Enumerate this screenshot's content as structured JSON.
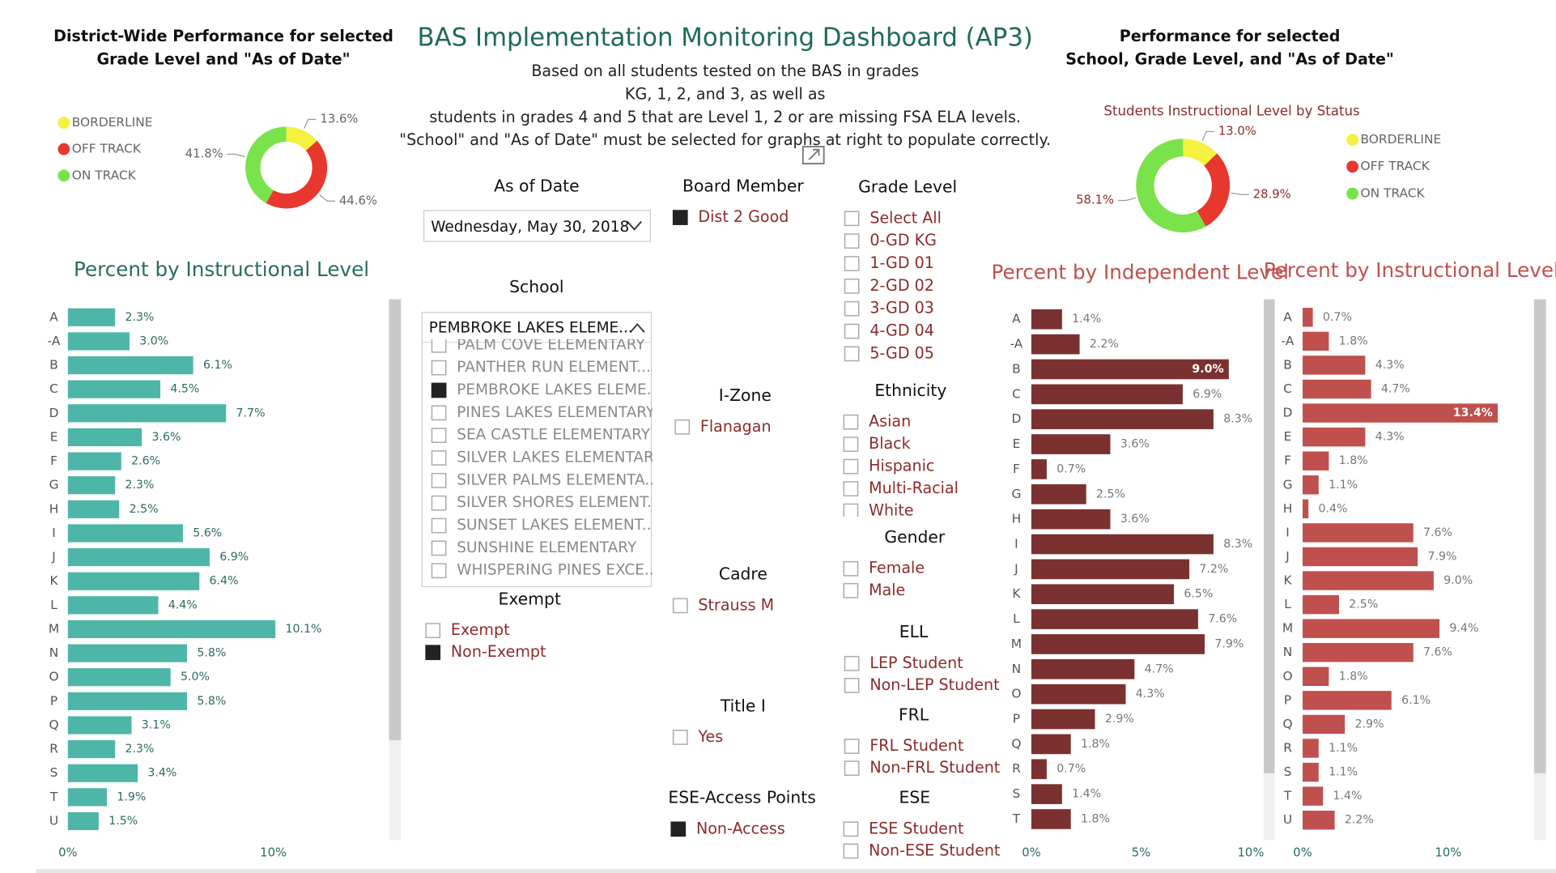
{
  "header": {
    "title": "BAS Implementation Monitoring Dashboard (AP3)",
    "description": [
      "Based on all students tested on the BAS in grades",
      "KG, 1, 2, and 3, as well as",
      "students in grades 4 and 5 that are Level 1, 2 or are missing FSA ELA levels.",
      "\"School\" and \"As of Date\" must be selected for graphs at right to populate correctly."
    ]
  },
  "chart_data": [
    {
      "type": "donut",
      "title": [
        "District-Wide Performance for selected",
        "Grade Level and \"As of Date\""
      ],
      "categories": [
        "BORDERLINE",
        "OFF TRACK",
        "ON TRACK"
      ],
      "values": [
        13.6,
        44.6,
        41.8
      ],
      "value_labels": [
        "13.6%",
        "44.6%",
        "41.8%"
      ],
      "colors": [
        "#f4f23e",
        "#e8382d",
        "#7ae24a"
      ]
    },
    {
      "type": "donut",
      "title": [
        "Performance for selected",
        "School, Grade Level, and \"As of Date\""
      ],
      "subtitle": "Students Instructional Level by Status",
      "categories": [
        "BORDERLINE",
        "OFF TRACK",
        "ON TRACK"
      ],
      "values": [
        13.0,
        28.9,
        58.1
      ],
      "value_labels": [
        "13.0%",
        "28.9%",
        "58.1%"
      ],
      "colors": [
        "#f4f23e",
        "#e8382d",
        "#7ae24a"
      ]
    },
    {
      "type": "bar",
      "orientation": "horizontal",
      "title": "Percent by Instructional Level",
      "categories": [
        "A",
        "-A",
        "B",
        "C",
        "D",
        "E",
        "F",
        "G",
        "H",
        "I",
        "J",
        "K",
        "L",
        "M",
        "N",
        "O",
        "P",
        "Q",
        "R",
        "S",
        "T",
        "U"
      ],
      "values": [
        2.3,
        3.0,
        6.1,
        4.5,
        7.7,
        3.6,
        2.6,
        2.3,
        2.5,
        5.6,
        6.9,
        6.4,
        4.4,
        10.1,
        5.8,
        5.0,
        5.8,
        3.1,
        2.3,
        3.4,
        1.9,
        1.5
      ],
      "value_labels": [
        "2.3%",
        "3.0%",
        "6.1%",
        "4.5%",
        "7.7%",
        "3.6%",
        "2.6%",
        "2.3%",
        "2.5%",
        "5.6%",
        "6.9%",
        "6.4%",
        "4.4%",
        "10.1%",
        "5.8%",
        "5.0%",
        "5.8%",
        "3.1%",
        "2.3%",
        "3.4%",
        "1.9%",
        "1.5%"
      ],
      "color": "#4db6a8",
      "xlim": [
        0,
        15
      ],
      "xticks": [
        {
          "value": 0,
          "label": "0%"
        },
        {
          "value": 10,
          "label": "10%"
        }
      ]
    },
    {
      "type": "bar",
      "orientation": "horizontal",
      "title": "Percent by Independent Level",
      "categories": [
        "A",
        "-A",
        "B",
        "C",
        "D",
        "E",
        "F",
        "G",
        "H",
        "I",
        "J",
        "K",
        "L",
        "M",
        "N",
        "O",
        "P",
        "Q",
        "R",
        "S",
        "T"
      ],
      "values": [
        1.4,
        2.2,
        9.0,
        6.9,
        8.3,
        3.6,
        0.7,
        2.5,
        3.6,
        8.3,
        7.2,
        6.5,
        7.6,
        7.9,
        4.7,
        4.3,
        2.9,
        1.8,
        0.7,
        1.4,
        1.8
      ],
      "value_labels": [
        "1.4%",
        "2.2%",
        "9.0%",
        "6.9%",
        "8.3%",
        "3.6%",
        "0.7%",
        "2.5%",
        "3.6%",
        "8.3%",
        "7.2%",
        "6.5%",
        "7.6%",
        "7.9%",
        "4.7%",
        "4.3%",
        "2.9%",
        "1.8%",
        "0.7%",
        "1.4%",
        "1.8%"
      ],
      "color": "#7b3130",
      "xlim": [
        0,
        10
      ],
      "xticks": [
        {
          "value": 0,
          "label": "0%"
        },
        {
          "value": 5,
          "label": "5%"
        },
        {
          "value": 10,
          "label": "10%"
        }
      ]
    },
    {
      "type": "bar",
      "orientation": "horizontal",
      "title": "Percent by Instructional Level",
      "categories": [
        "A",
        "-A",
        "B",
        "C",
        "D",
        "E",
        "F",
        "G",
        "H",
        "I",
        "J",
        "K",
        "L",
        "M",
        "N",
        "O",
        "P",
        "Q",
        "R",
        "S",
        "T",
        "U"
      ],
      "values": [
        0.7,
        1.8,
        4.3,
        4.7,
        13.4,
        4.3,
        1.8,
        1.1,
        0.4,
        7.6,
        7.9,
        9.0,
        2.5,
        9.4,
        7.6,
        1.8,
        6.1,
        2.9,
        1.1,
        1.1,
        1.4,
        2.2
      ],
      "value_labels": [
        "0.7%",
        "1.8%",
        "4.3%",
        "4.7%",
        "13.4%",
        "4.3%",
        "1.8%",
        "1.1%",
        "0.4%",
        "7.6%",
        "7.9%",
        "9.0%",
        "2.5%",
        "9.4%",
        "7.6%",
        "1.8%",
        "6.1%",
        "2.9%",
        "1.1%",
        "1.1%",
        "1.4%",
        "2.2%"
      ],
      "color": "#c0504d",
      "xlim": [
        0,
        15
      ],
      "xticks": [
        {
          "value": 0,
          "label": "0%"
        },
        {
          "value": 10,
          "label": "10%"
        }
      ]
    }
  ],
  "slicers": [
    {
      "title": "As of Date",
      "selected": "Wednesday, May 30, 2018"
    },
    {
      "title": "School",
      "selected": "PEMBROKE LAKES ELEME...",
      "items": [
        {
          "label": "PALM COVE ELEMENTARY",
          "checked": false
        },
        {
          "label": "PANTHER RUN ELEMENT...",
          "checked": false
        },
        {
          "label": "PEMBROKE LAKES ELEME...",
          "checked": true
        },
        {
          "label": "PINES LAKES ELEMENTARY",
          "checked": false
        },
        {
          "label": "SEA CASTLE ELEMENTARY",
          "checked": false
        },
        {
          "label": "SILVER LAKES ELEMENTARY",
          "checked": false
        },
        {
          "label": "SILVER PALMS ELEMENTA...",
          "checked": false
        },
        {
          "label": "SILVER SHORES ELEMENT...",
          "checked": false
        },
        {
          "label": "SUNSET LAKES ELEMENT...",
          "checked": false
        },
        {
          "label": "SUNSHINE ELEMENTARY",
          "checked": false
        },
        {
          "label": "WHISPERING PINES EXCE...",
          "checked": false
        }
      ]
    },
    {
      "title": "Exempt",
      "items": [
        {
          "label": "Exempt",
          "checked": false
        },
        {
          "label": "Non-Exempt",
          "checked": true
        }
      ]
    },
    {
      "title": "Board Member",
      "items": [
        {
          "label": "Dist 2 Good",
          "checked": true
        }
      ]
    },
    {
      "title": "I-Zone",
      "items": [
        {
          "label": "Flanagan",
          "checked": false
        }
      ]
    },
    {
      "title": "Cadre",
      "items": [
        {
          "label": "Strauss M",
          "checked": false
        }
      ]
    },
    {
      "title": "Title I",
      "items": [
        {
          "label": "Yes",
          "checked": false
        }
      ]
    },
    {
      "title": "ESE-Access Points",
      "items": [
        {
          "label": "Non-Access",
          "checked": true
        }
      ]
    },
    {
      "title": "Grade Level",
      "items": [
        {
          "label": "Select All",
          "checked": false
        },
        {
          "label": "0-GD KG",
          "checked": false
        },
        {
          "label": "1-GD 01",
          "checked": false
        },
        {
          "label": "2-GD 02",
          "checked": false
        },
        {
          "label": "3-GD 03",
          "checked": false
        },
        {
          "label": "4-GD 04",
          "checked": false
        },
        {
          "label": "5-GD 05",
          "checked": false
        }
      ]
    },
    {
      "title": "Ethnicity",
      "items": [
        {
          "label": "Asian",
          "checked": false
        },
        {
          "label": "Black",
          "checked": false
        },
        {
          "label": "Hispanic",
          "checked": false
        },
        {
          "label": "Multi-Racial",
          "checked": false
        },
        {
          "label": "White",
          "checked": false
        }
      ]
    },
    {
      "title": "Gender",
      "items": [
        {
          "label": "Female",
          "checked": false
        },
        {
          "label": "Male",
          "checked": false
        }
      ]
    },
    {
      "title": "ELL",
      "items": [
        {
          "label": "LEP Student",
          "checked": false
        },
        {
          "label": "Non-LEP Student",
          "checked": false
        }
      ]
    },
    {
      "title": "FRL",
      "items": [
        {
          "label": "FRL Student",
          "checked": false
        },
        {
          "label": "Non-FRL Student",
          "checked": false
        }
      ]
    },
    {
      "title": "ESE",
      "items": [
        {
          "label": "ESE Student",
          "checked": false
        },
        {
          "label": "Non-ESE Student",
          "checked": false
        }
      ]
    }
  ]
}
